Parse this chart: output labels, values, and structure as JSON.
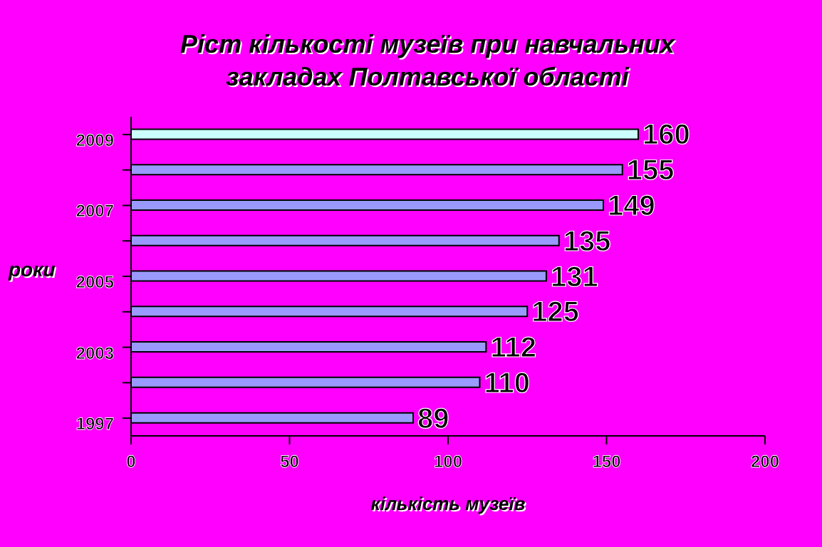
{
  "chart_data": {
    "type": "bar",
    "orientation": "horizontal",
    "title": "Ріст кількості музеїв при навчальних закладах Полтавської області",
    "xlabel": "кількість музеїв",
    "ylabel": "роки",
    "categories": [
      "2009",
      null,
      "2007",
      null,
      "2005",
      null,
      "2003",
      null,
      "1997"
    ],
    "values": [
      160,
      155,
      149,
      135,
      131,
      125,
      112,
      110,
      89
    ],
    "colors": [
      "#ccffff",
      "#9999ff",
      "#9999ff",
      "#9999ff",
      "#9999ff",
      "#9999ff",
      "#9999ff",
      "#9999ff",
      "#9999ff"
    ],
    "xlim": [
      0,
      200
    ],
    "xticks": [
      0,
      50,
      100,
      150,
      200
    ],
    "data_labels": true
  }
}
